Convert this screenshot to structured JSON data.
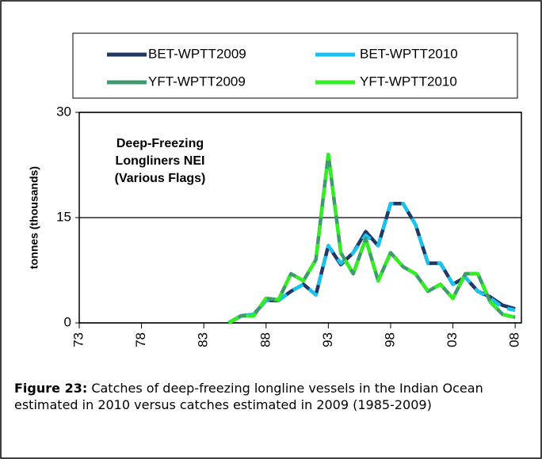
{
  "chart_data": {
    "type": "line",
    "annotation": [
      "Deep-Freezing",
      "Longliners NEI",
      "(Various Flags)"
    ],
    "y_label": "tonnes (thousands)",
    "x": [
      1985,
      1986,
      1987,
      1988,
      1989,
      1990,
      1991,
      1992,
      1993,
      1994,
      1995,
      1996,
      1997,
      1998,
      1999,
      2000,
      2001,
      2002,
      2003,
      2004,
      2005,
      2006,
      2007,
      2008
    ],
    "series": [
      {
        "name": "BET-WPTT2009",
        "color": "#1f3864",
        "values": [
          0,
          1,
          1.2,
          3.2,
          3.2,
          4.5,
          5.5,
          4,
          11,
          8.3,
          10,
          13,
          11,
          17,
          17,
          14,
          8.5,
          8.5,
          5.5,
          6.5,
          4.5,
          3.7,
          2.5,
          2
        ]
      },
      {
        "name": "BET-WPTT2010",
        "color": "#19c3f0",
        "values": [
          0,
          1,
          1.2,
          3.2,
          3.2,
          4.5,
          5.5,
          4,
          11,
          8.5,
          10,
          12.5,
          11,
          17,
          17,
          14,
          8.5,
          8.5,
          5.5,
          6.5,
          4.5,
          3.5,
          2.2,
          1.8
        ]
      },
      {
        "name": "YFT-WPTT2009",
        "color": "#3d9b6e",
        "values": [
          0,
          1,
          1,
          3.5,
          3.3,
          7,
          6,
          9,
          24,
          10,
          7,
          12,
          6,
          10,
          8,
          7,
          4.5,
          5.5,
          3.5,
          7,
          7,
          3,
          1.2,
          0.8
        ]
      },
      {
        "name": "YFT-WPTT2010",
        "color": "#33ee22",
        "values": [
          0,
          1,
          1,
          3.5,
          3.3,
          7,
          6,
          9,
          24,
          10,
          7,
          12,
          6,
          10,
          8,
          7,
          4.5,
          5.5,
          3.5,
          7,
          7,
          3,
          1.2,
          0.8
        ]
      }
    ],
    "xlim": [
      1973,
      2008.5
    ],
    "xticks": [
      {
        "value": 1973,
        "label": "73"
      },
      {
        "value": 1978,
        "label": "78"
      },
      {
        "value": 1983,
        "label": "83"
      },
      {
        "value": 1988,
        "label": "88"
      },
      {
        "value": 1993,
        "label": "93"
      },
      {
        "value": 1998,
        "label": "98"
      },
      {
        "value": 2003,
        "label": "03"
      },
      {
        "value": 2008,
        "label": "08"
      }
    ],
    "ylim": [
      0,
      30
    ],
    "yticks": [
      0,
      15,
      30
    ],
    "grid": true
  },
  "caption": {
    "label": "Figure 23:",
    "text": "Catches of deep-freezing longline vessels in the Indian Ocean estimated in 2010 versus catches estimated in 2009 (1985-2009)"
  }
}
